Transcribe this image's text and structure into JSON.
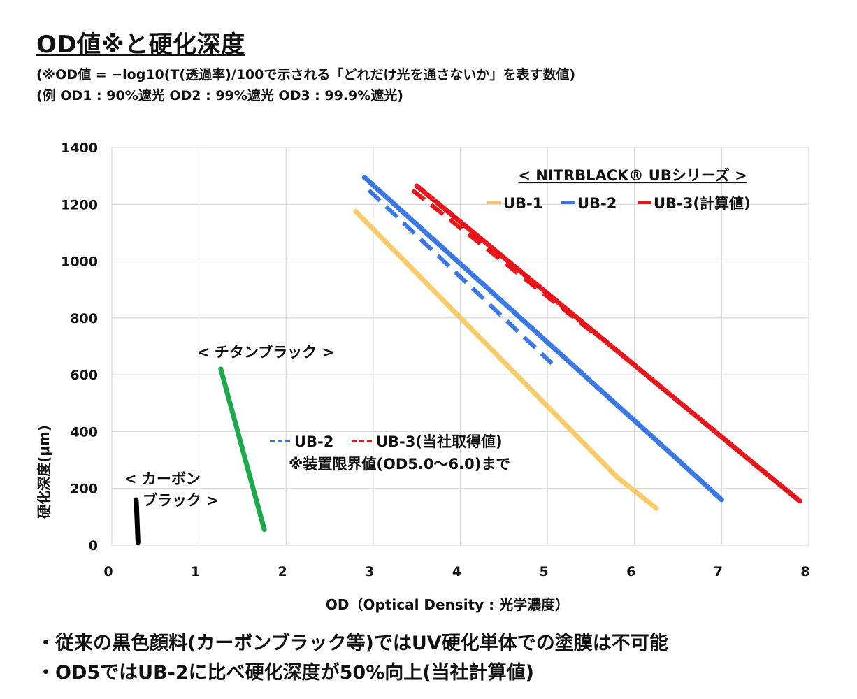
{
  "header": {
    "title": "OD値※と硬化深度",
    "note1": "(※OD値 = −log10(T(透過率)/100で示される「どれだけ光を通さないか」を表す数値)",
    "note2": "(例 OD1 : 90%遮光 OD2 : 99%遮光 OD3 : 99.9%遮光)"
  },
  "bullets": [
    "・従来の黒色顔料(カーボンブラック等)ではUV硬化単体での塗膜は不可能",
    "・OD5ではUB-2に比べ硬化深度が50%向上(当社計算値)"
  ],
  "chart_data": {
    "type": "line",
    "xlabel": "OD（Optical Density : 光学濃度）",
    "ylabel": "硬化深度(μm)",
    "xlim": [
      0,
      8
    ],
    "ylim": [
      0,
      1400
    ],
    "x_ticks": [
      "0",
      "1",
      "2",
      "3",
      "4",
      "5",
      "6",
      "7",
      "8"
    ],
    "y_ticks": [
      "0",
      "200",
      "400",
      "600",
      "800",
      "1000",
      "1200",
      "1400"
    ],
    "grid": true,
    "legend": {
      "title": "< NITRBLACK® UBシリーズ >",
      "placement": "top-right",
      "entries": [
        "UB-1",
        "UB-2",
        "UB-3(計算値)"
      ]
    },
    "legend2": {
      "entries": [
        "UB-2",
        "UB-3(当社取得値)"
      ],
      "note": "※装置限界値(OD5.0～6.0)まで"
    },
    "annotations": {
      "titanium": "< チタンブラック >",
      "carbon_line1": "< カーボン",
      "carbon_line2": "ブラック >"
    },
    "series": [
      {
        "name": "カーボンブラック",
        "color": "#000000",
        "dashed": false,
        "points": [
          [
            0.28,
            160
          ],
          [
            0.3,
            10
          ]
        ]
      },
      {
        "name": "チタンブラック",
        "color": "#1aaa4a",
        "dashed": false,
        "points": [
          [
            1.25,
            620
          ],
          [
            1.75,
            55
          ]
        ]
      },
      {
        "name": "UB-1",
        "color": "#fbcb6a",
        "dashed": false,
        "points": [
          [
            2.8,
            1175
          ],
          [
            5.8,
            240
          ],
          [
            6.25,
            130
          ]
        ]
      },
      {
        "name": "UB-2",
        "color": "#3a78e6",
        "dashed": false,
        "points": [
          [
            2.9,
            1295
          ],
          [
            6.5,
            300
          ],
          [
            7.0,
            160
          ]
        ]
      },
      {
        "name": "UB-3(計算値)",
        "color": "#e8151b",
        "dashed": false,
        "points": [
          [
            3.5,
            1265
          ],
          [
            7.4,
            280
          ],
          [
            7.9,
            155
          ]
        ]
      },
      {
        "name": "UB-2",
        "color": "#3a78e6",
        "dashed": true,
        "points": [
          [
            2.95,
            1250
          ],
          [
            5.05,
            640
          ]
        ]
      },
      {
        "name": "UB-3(当社取得値)",
        "color": "#e8151b",
        "dashed": true,
        "points": [
          [
            3.45,
            1250
          ],
          [
            5.6,
            730
          ]
        ]
      }
    ]
  }
}
